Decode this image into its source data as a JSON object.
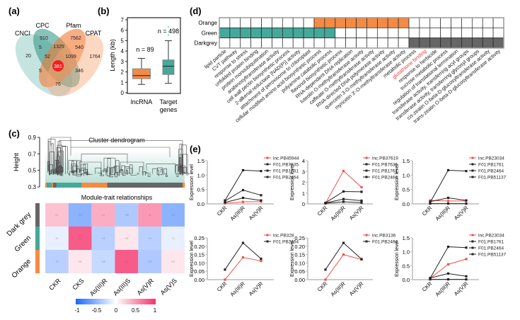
{
  "panel_labels": {
    "a": "(a)",
    "b": "(b)",
    "c": "(c)",
    "d": "(d)",
    "e": "(e)"
  },
  "colors": {
    "orange": "#f58a44",
    "green": "#45a89a",
    "darkgrey": "#666666",
    "red": "#f04040",
    "negative": "#1a66ff",
    "positive": "#f5326a"
  },
  "chart_data": [
    {
      "id": "a",
      "type": "venn",
      "sets": [
        "CNCI",
        "CPC",
        "Pfam",
        "CPAT"
      ],
      "regions": [
        {
          "sets": [
            "CPC"
          ],
          "value": "910"
        },
        {
          "sets": [
            "Pfam"
          ],
          "value": "7562"
        },
        {
          "sets": [
            "CNCI",
            "CPC"
          ],
          "value": "5"
        },
        {
          "sets": [
            "CPC",
            "Pfam"
          ],
          "value": "1325"
        },
        {
          "sets": [
            "Pfam",
            "CPAT"
          ],
          "value": "540"
        },
        {
          "sets": [
            "CNCI"
          ],
          "value": "20"
        },
        {
          "sets": [
            "CNCI",
            "CPC",
            "Pfam"
          ],
          "value": "52"
        },
        {
          "sets": [
            "CPC",
            "Pfam",
            "CPAT"
          ],
          "value": "1099"
        },
        {
          "sets": [
            "CPAT"
          ],
          "value": "1764"
        },
        {
          "sets": [
            "CNCI",
            "CPC",
            "Pfam",
            "CPAT"
          ],
          "value": "381",
          "highlight": true
        },
        {
          "sets": [
            "CNCI",
            "Pfam"
          ],
          "value": "5"
        },
        {
          "sets": [
            "CPC",
            "CPAT"
          ],
          "value": "346"
        },
        {
          "sets": [
            "CNCI",
            "CPAT"
          ],
          "value": "76"
        }
      ]
    },
    {
      "id": "b",
      "type": "box",
      "ylabel": "Length (kb)",
      "ylim": [
        0,
        7
      ],
      "yticks": [
        "0",
        "1",
        "2",
        "3",
        "4",
        "5",
        "6",
        "7"
      ],
      "groups": [
        {
          "label": "lncRNA",
          "label2": "",
          "n_label": "n = 89",
          "min": 0.8,
          "q1": 1.35,
          "median": 1.65,
          "q3": 2.3,
          "max": 3.3,
          "outliers": [],
          "color": "#f58a44"
        },
        {
          "label": "Target",
          "label2": "genes",
          "n_label": "n = 498",
          "min": 0.9,
          "q1": 1.75,
          "median": 2.55,
          "q3": 3.15,
          "max": 5.0,
          "outliers": [
            5.5,
            6.3
          ],
          "color": "#45a89a"
        }
      ]
    },
    {
      "id": "c-dendrogram",
      "type": "dendrogram",
      "title": "Cluster dendrogram",
      "ylabel": "Height",
      "ylim": [
        0.3,
        0.9
      ],
      "yticks": [
        "0.3",
        "0.5",
        "0.7",
        "0.9"
      ],
      "module_bar": [
        "orange",
        "green",
        "orange",
        "darkgrey",
        "green",
        "orange",
        "darkgrey",
        "orange"
      ],
      "module_bar_fractions": [
        0.01,
        0.035,
        0.01,
        0.025,
        0.18,
        0.185,
        0.54,
        0.015
      ]
    },
    {
      "id": "c-heatmap",
      "type": "heatmap",
      "title": "Module-trait relationships",
      "rows": [
        "Dark grey",
        "Green",
        "Orange"
      ],
      "row_colors": [
        "#666666",
        "#45a89a",
        "#f58a44"
      ],
      "columns": [
        "CKR",
        "CKS",
        "As(III)R",
        "As(III)S",
        "As(V)R",
        "As(V)S"
      ],
      "values": [
        [
          0.3,
          -0.5,
          0.4,
          -0.35,
          0.5,
          -0.5
        ],
        [
          -0.1,
          0.8,
          -0.3,
          0.12,
          -0.3,
          -0.1
        ],
        [
          -0.3,
          0.12,
          -0.25,
          0.8,
          -0.35,
          0.12
        ]
      ],
      "colorbar": {
        "range": [
          -1,
          1
        ],
        "ticks": [
          "-1",
          "-0.5",
          "0",
          "0.5",
          "1"
        ]
      }
    },
    {
      "id": "d",
      "type": "table",
      "rows": [
        "Orange",
        "Green",
        "Darkgrey"
      ],
      "columns": [
        "lipid particle",
        "CVT pathway",
        "response to stress",
        "unfolded protein binding",
        "protein monoubiquitination",
        "arabinosyltransferase activity",
        "cell wall pectin biosynthetic process",
        "2-alkenal reductase [NAD(P)] activity",
        "attachment of peroxisome to chloroplast",
        "cellular modified amino acid biosynthetic process",
        "polyamine catabolic process",
        "flavonol biosynthetic process",
        "RNA-dependent DNA replication",
        "luteolin O-methyltransferase activity",
        "caffeate O-methyltransferase activity",
        "RNA-directed DNA polymerase activity",
        "quercetin 3-O-methyltransferase activity",
        "myricetin 3'-O-methyltransferase activity",
        "metabolic process",
        "glutathione binding",
        "response to herbicide",
        "sucrose metabolic process",
        "regulation of translational termination",
        "transferase activity, transferring acyl groups",
        "transferase activity, transferring glycosyl groups",
        "cis-zeatin O-beta-D-glucosyltransferase activity",
        "trans-zeatin O-beta-D-glucosyltransferase activity"
      ],
      "highlighted_column": "glutathione binding",
      "filled": {
        "Orange": [
          9,
          10,
          11,
          12,
          13,
          14,
          15,
          16,
          17
        ],
        "Green": [
          0,
          1,
          2,
          3,
          4,
          5,
          6,
          7,
          8,
          9,
          10
        ],
        "Darkgrey": [
          18,
          19,
          20,
          21,
          22,
          23,
          24,
          25,
          26
        ]
      }
    },
    {
      "id": "e",
      "type": "line",
      "ylabel": "Expression level",
      "categories": [
        "CKR",
        "As(III)R",
        "As(V)R"
      ],
      "panels": [
        {
          "ylim": [
            0,
            1.5
          ],
          "yticks": [
            "0.0",
            "0.5",
            "1.0",
            "1.5"
          ],
          "series": [
            {
              "name": "lnc.PB45944",
              "values": [
                0.02,
                0.07,
                0.08
              ],
              "lnc": true
            },
            {
              "name": "F01.PB7635",
              "values": [
                0.12,
                1.17,
                1.14
              ]
            },
            {
              "name": "F01.PB1761",
              "values": [
                0.1,
                0.48,
                0.3
              ]
            },
            {
              "name": "F01.PB2464",
              "values": [
                0.05,
                0.21,
                0.12
              ]
            }
          ]
        },
        {
          "ylim": [
            0,
            4
          ],
          "yticks": [
            "0",
            "1",
            "2",
            "3",
            "4"
          ],
          "series": [
            {
              "name": "lnc.PB37619",
              "values": [
                0.05,
                3.05,
                1.55
              ],
              "lnc": true
            },
            {
              "name": "F01.PB7635",
              "values": [
                0.1,
                1.15,
                1.12
              ]
            },
            {
              "name": "F01.PB1761",
              "values": [
                0.08,
                0.45,
                0.3
              ]
            },
            {
              "name": "F01.PB2464",
              "values": [
                0.05,
                0.2,
                0.12
              ]
            }
          ]
        },
        {
          "ylim": [
            0,
            1.5
          ],
          "yticks": [
            "0.0",
            "0.5",
            "1.0",
            "1.5"
          ],
          "series": [
            {
              "name": "lnc.PB23034",
              "values": [
                0.12,
                0.1,
                0.1
              ],
              "lnc": true
            },
            {
              "name": "F01.PB1761",
              "values": [
                0.05,
                1.17,
                1.14
              ]
            },
            {
              "name": "F01.PB2464",
              "values": [
                0.08,
                0.21,
                0.12
              ]
            },
            {
              "name": "F01.PB51137",
              "values": [
                0.01,
                0.01,
                0.01
              ]
            }
          ]
        },
        {
          "ylim": [
            0,
            0.25
          ],
          "yticks": [
            "0.00",
            "0.05",
            "0.10",
            "0.15",
            "0.20",
            "0.25"
          ],
          "series": [
            {
              "name": "lnc.PB328",
              "values": [
                0.0,
                0.133,
                0.112
              ],
              "lnc": true
            },
            {
              "name": "F01.PB2464",
              "values": [
                0.06,
                0.22,
                0.125
              ]
            }
          ]
        },
        {
          "ylim": [
            0,
            0.25
          ],
          "yticks": [
            "0.00",
            "0.05",
            "0.10",
            "0.15",
            "0.20",
            "0.25"
          ],
          "series": [
            {
              "name": "lnc.PB3136",
              "values": [
                0.0,
                0.15,
                0.12
              ],
              "lnc": true
            },
            {
              "name": "F01.PB2464",
              "values": [
                0.06,
                0.22,
                0.123
              ]
            }
          ]
        },
        {
          "ylim": [
            0,
            1.5
          ],
          "yticks": [
            "0.0",
            "0.5",
            "1.0",
            "1.5"
          ],
          "series": [
            {
              "name": "lnc.PB23034",
              "values": [
                0.05,
                0.55,
                0.74
              ],
              "lnc": true
            },
            {
              "name": "F01.PB1761",
              "values": [
                0.05,
                1.18,
                1.15
              ]
            },
            {
              "name": "F01.PB2464",
              "values": [
                0.06,
                0.22,
                0.12
              ]
            },
            {
              "name": "F01.PB51137",
              "values": [
                0.01,
                0.01,
                0.01
              ]
            }
          ]
        }
      ]
    }
  ]
}
